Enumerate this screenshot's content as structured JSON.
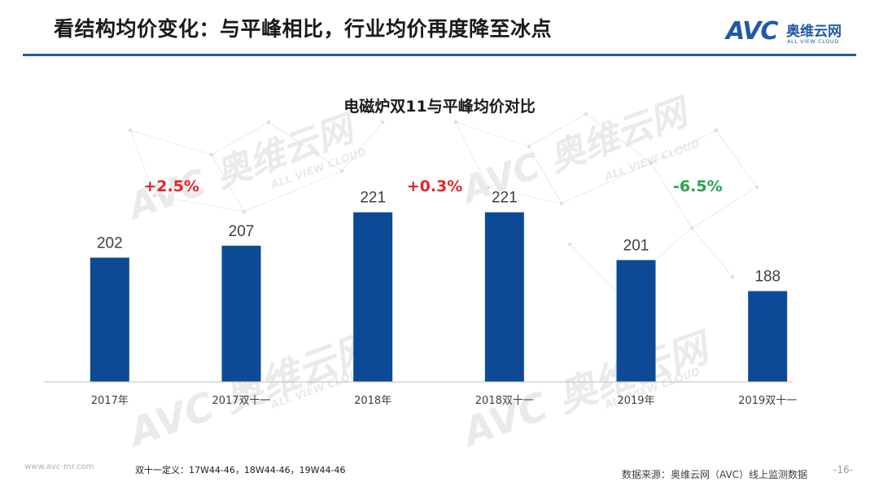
{
  "header": {
    "title": "看结构均价变化：与平峰相比，行业均价再度降至冰点"
  },
  "logo": {
    "mark": "AVC",
    "cn": "奥维云网",
    "en": "ALL VIEW CLOUD",
    "color": "#1f5aa6"
  },
  "watermarks": {
    "mark": "AVC",
    "cn": "奥维云网",
    "en": "ALL VIEW CLOUD"
  },
  "chart_data": {
    "type": "bar",
    "title": "电磁炉双11与平峰均价对比",
    "categories": [
      "2017年",
      "2017双十一",
      "2018年",
      "2018双十一",
      "2019年",
      "2019双十一"
    ],
    "values": [
      202,
      207,
      221,
      221,
      201,
      188
    ],
    "ylim": [
      150,
      225
    ],
    "bar_color": "#0c4a96",
    "xlabel": "",
    "ylabel": "",
    "grid": false,
    "annotations": [
      {
        "text": "+2.5%",
        "between": [
          0,
          1
        ],
        "color": "#e0262d"
      },
      {
        "text": "+0.3%",
        "between": [
          2,
          3
        ],
        "color": "#e0262d"
      },
      {
        "text": "-6.5%",
        "between": [
          4,
          5
        ],
        "color": "#2aa14b"
      }
    ]
  },
  "footnote": "双十一定义：17W44-46，18W44-46，19W44-46",
  "website": "www.avc-mr.com",
  "source": "数据来源：奥维云网（AVC）线上监测数据",
  "page_number": "-16-"
}
